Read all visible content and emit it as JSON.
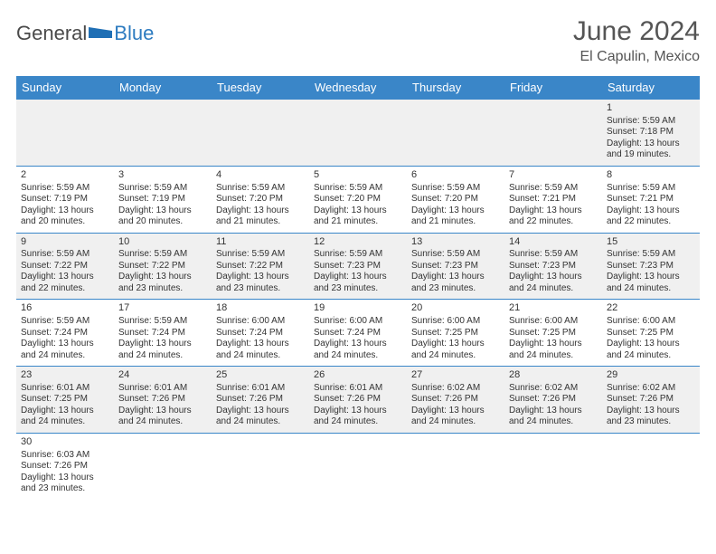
{
  "logo": {
    "text_general": "General",
    "text_blue": "Blue"
  },
  "title": {
    "month": "June 2024",
    "location": "El Capulin, Mexico"
  },
  "colors": {
    "header_bg": "#3a86c8",
    "header_text": "#ffffff",
    "row_odd_bg": "#f0f0f0",
    "row_even_bg": "#ffffff",
    "border": "#3a86c8",
    "text": "#333333",
    "logo_blue": "#2d7bc0"
  },
  "weekdays": [
    "Sunday",
    "Monday",
    "Tuesday",
    "Wednesday",
    "Thursday",
    "Friday",
    "Saturday"
  ],
  "weeks": [
    {
      "parity": "odd",
      "days": [
        null,
        null,
        null,
        null,
        null,
        null,
        {
          "n": "1",
          "sunrise": "Sunrise: 5:59 AM",
          "sunset": "Sunset: 7:18 PM",
          "day1": "Daylight: 13 hours",
          "day2": "and 19 minutes."
        }
      ]
    },
    {
      "parity": "even",
      "days": [
        {
          "n": "2",
          "sunrise": "Sunrise: 5:59 AM",
          "sunset": "Sunset: 7:19 PM",
          "day1": "Daylight: 13 hours",
          "day2": "and 20 minutes."
        },
        {
          "n": "3",
          "sunrise": "Sunrise: 5:59 AM",
          "sunset": "Sunset: 7:19 PM",
          "day1": "Daylight: 13 hours",
          "day2": "and 20 minutes."
        },
        {
          "n": "4",
          "sunrise": "Sunrise: 5:59 AM",
          "sunset": "Sunset: 7:20 PM",
          "day1": "Daylight: 13 hours",
          "day2": "and 21 minutes."
        },
        {
          "n": "5",
          "sunrise": "Sunrise: 5:59 AM",
          "sunset": "Sunset: 7:20 PM",
          "day1": "Daylight: 13 hours",
          "day2": "and 21 minutes."
        },
        {
          "n": "6",
          "sunrise": "Sunrise: 5:59 AM",
          "sunset": "Sunset: 7:20 PM",
          "day1": "Daylight: 13 hours",
          "day2": "and 21 minutes."
        },
        {
          "n": "7",
          "sunrise": "Sunrise: 5:59 AM",
          "sunset": "Sunset: 7:21 PM",
          "day1": "Daylight: 13 hours",
          "day2": "and 22 minutes."
        },
        {
          "n": "8",
          "sunrise": "Sunrise: 5:59 AM",
          "sunset": "Sunset: 7:21 PM",
          "day1": "Daylight: 13 hours",
          "day2": "and 22 minutes."
        }
      ]
    },
    {
      "parity": "odd",
      "days": [
        {
          "n": "9",
          "sunrise": "Sunrise: 5:59 AM",
          "sunset": "Sunset: 7:22 PM",
          "day1": "Daylight: 13 hours",
          "day2": "and 22 minutes."
        },
        {
          "n": "10",
          "sunrise": "Sunrise: 5:59 AM",
          "sunset": "Sunset: 7:22 PM",
          "day1": "Daylight: 13 hours",
          "day2": "and 23 minutes."
        },
        {
          "n": "11",
          "sunrise": "Sunrise: 5:59 AM",
          "sunset": "Sunset: 7:22 PM",
          "day1": "Daylight: 13 hours",
          "day2": "and 23 minutes."
        },
        {
          "n": "12",
          "sunrise": "Sunrise: 5:59 AM",
          "sunset": "Sunset: 7:23 PM",
          "day1": "Daylight: 13 hours",
          "day2": "and 23 minutes."
        },
        {
          "n": "13",
          "sunrise": "Sunrise: 5:59 AM",
          "sunset": "Sunset: 7:23 PM",
          "day1": "Daylight: 13 hours",
          "day2": "and 23 minutes."
        },
        {
          "n": "14",
          "sunrise": "Sunrise: 5:59 AM",
          "sunset": "Sunset: 7:23 PM",
          "day1": "Daylight: 13 hours",
          "day2": "and 24 minutes."
        },
        {
          "n": "15",
          "sunrise": "Sunrise: 5:59 AM",
          "sunset": "Sunset: 7:23 PM",
          "day1": "Daylight: 13 hours",
          "day2": "and 24 minutes."
        }
      ]
    },
    {
      "parity": "even",
      "days": [
        {
          "n": "16",
          "sunrise": "Sunrise: 5:59 AM",
          "sunset": "Sunset: 7:24 PM",
          "day1": "Daylight: 13 hours",
          "day2": "and 24 minutes."
        },
        {
          "n": "17",
          "sunrise": "Sunrise: 5:59 AM",
          "sunset": "Sunset: 7:24 PM",
          "day1": "Daylight: 13 hours",
          "day2": "and 24 minutes."
        },
        {
          "n": "18",
          "sunrise": "Sunrise: 6:00 AM",
          "sunset": "Sunset: 7:24 PM",
          "day1": "Daylight: 13 hours",
          "day2": "and 24 minutes."
        },
        {
          "n": "19",
          "sunrise": "Sunrise: 6:00 AM",
          "sunset": "Sunset: 7:24 PM",
          "day1": "Daylight: 13 hours",
          "day2": "and 24 minutes."
        },
        {
          "n": "20",
          "sunrise": "Sunrise: 6:00 AM",
          "sunset": "Sunset: 7:25 PM",
          "day1": "Daylight: 13 hours",
          "day2": "and 24 minutes."
        },
        {
          "n": "21",
          "sunrise": "Sunrise: 6:00 AM",
          "sunset": "Sunset: 7:25 PM",
          "day1": "Daylight: 13 hours",
          "day2": "and 24 minutes."
        },
        {
          "n": "22",
          "sunrise": "Sunrise: 6:00 AM",
          "sunset": "Sunset: 7:25 PM",
          "day1": "Daylight: 13 hours",
          "day2": "and 24 minutes."
        }
      ]
    },
    {
      "parity": "odd",
      "days": [
        {
          "n": "23",
          "sunrise": "Sunrise: 6:01 AM",
          "sunset": "Sunset: 7:25 PM",
          "day1": "Daylight: 13 hours",
          "day2": "and 24 minutes."
        },
        {
          "n": "24",
          "sunrise": "Sunrise: 6:01 AM",
          "sunset": "Sunset: 7:26 PM",
          "day1": "Daylight: 13 hours",
          "day2": "and 24 minutes."
        },
        {
          "n": "25",
          "sunrise": "Sunrise: 6:01 AM",
          "sunset": "Sunset: 7:26 PM",
          "day1": "Daylight: 13 hours",
          "day2": "and 24 minutes."
        },
        {
          "n": "26",
          "sunrise": "Sunrise: 6:01 AM",
          "sunset": "Sunset: 7:26 PM",
          "day1": "Daylight: 13 hours",
          "day2": "and 24 minutes."
        },
        {
          "n": "27",
          "sunrise": "Sunrise: 6:02 AM",
          "sunset": "Sunset: 7:26 PM",
          "day1": "Daylight: 13 hours",
          "day2": "and 24 minutes."
        },
        {
          "n": "28",
          "sunrise": "Sunrise: 6:02 AM",
          "sunset": "Sunset: 7:26 PM",
          "day1": "Daylight: 13 hours",
          "day2": "and 24 minutes."
        },
        {
          "n": "29",
          "sunrise": "Sunrise: 6:02 AM",
          "sunset": "Sunset: 7:26 PM",
          "day1": "Daylight: 13 hours",
          "day2": "and 23 minutes."
        }
      ]
    },
    {
      "parity": "even",
      "days": [
        {
          "n": "30",
          "sunrise": "Sunrise: 6:03 AM",
          "sunset": "Sunset: 7:26 PM",
          "day1": "Daylight: 13 hours",
          "day2": "and 23 minutes."
        },
        null,
        null,
        null,
        null,
        null,
        null
      ]
    }
  ]
}
